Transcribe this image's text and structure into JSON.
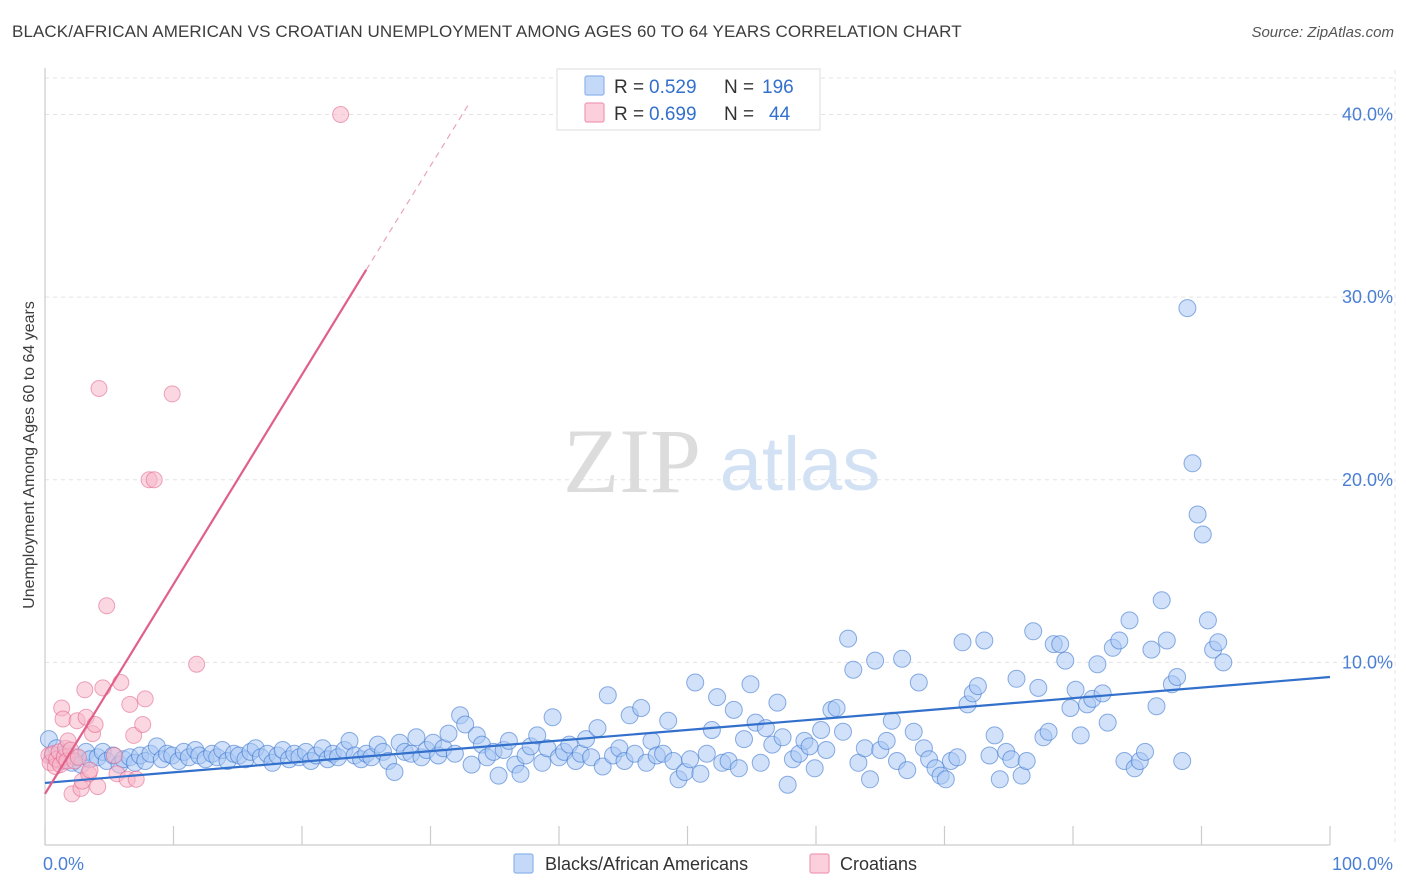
{
  "header": {
    "title": "BLACK/AFRICAN AMERICAN VS CROATIAN UNEMPLOYMENT AMONG AGES 60 TO 64 YEARS CORRELATION CHART",
    "source": "Source: ZipAtlas.com"
  },
  "watermark": {
    "zip": "ZIP",
    "atlas": "atlas"
  },
  "stats": [
    {
      "r_label": "R =",
      "r_value": "0.529",
      "n_label": "N =",
      "n_value": "196",
      "color": "#a9c8f4"
    },
    {
      "r_label": "R =",
      "r_value": "0.699",
      "n_label": "N =",
      "n_value": "44",
      "color": "#f7b6c9"
    }
  ],
  "legend": [
    {
      "label": "Blacks/African Americans",
      "color": "#a9c8f4"
    },
    {
      "label": "Croatians",
      "color": "#f7b6c9"
    }
  ],
  "chart_data": {
    "type": "scatter",
    "ylabel": "Unemployment Among Ages 60 to 64 years",
    "xlim": [
      0,
      100
    ],
    "ylim": [
      0,
      42
    ],
    "x_tick_labels": [
      {
        "value": 0,
        "label": "0.0%"
      },
      {
        "value": 100,
        "label": "100.0%"
      }
    ],
    "y_tick_labels": [
      {
        "value": 10,
        "label": "10.0%"
      },
      {
        "value": 20,
        "label": "20.0%"
      },
      {
        "value": 30,
        "label": "30.0%"
      },
      {
        "value": 40,
        "label": "40.0%"
      }
    ],
    "grid": true,
    "series": [
      {
        "name": "Blacks/African Americans",
        "color": "#3370cc",
        "fill": "#a9c8f4",
        "trend": {
          "x": [
            0,
            100
          ],
          "y": [
            3.4,
            9.2
          ]
        },
        "points": [
          [
            0.3,
            5.8
          ],
          [
            0.6,
            4.9
          ],
          [
            0.9,
            5.3
          ],
          [
            1.3,
            4.6
          ],
          [
            1.6,
            5.0
          ],
          [
            2.1,
            4.5
          ],
          [
            2.4,
            4.8
          ],
          [
            2.8,
            4.4
          ],
          [
            3.2,
            5.1
          ],
          [
            3.5,
            4.7
          ],
          [
            4.1,
            4.8
          ],
          [
            4.5,
            5.1
          ],
          [
            4.8,
            4.6
          ],
          [
            5.3,
            4.9
          ],
          [
            5.8,
            4.4
          ],
          [
            6.1,
            4.7
          ],
          [
            6.6,
            4.8
          ],
          [
            7.0,
            4.5
          ],
          [
            7.4,
            4.9
          ],
          [
            7.8,
            4.6
          ],
          [
            8.2,
            5.0
          ],
          [
            8.7,
            5.4
          ],
          [
            9.1,
            4.7
          ],
          [
            9.5,
            5.0
          ],
          [
            9.9,
            4.9
          ],
          [
            10.4,
            4.6
          ],
          [
            10.8,
            5.1
          ],
          [
            11.2,
            4.8
          ],
          [
            11.7,
            5.2
          ],
          [
            12.0,
            4.9
          ],
          [
            12.5,
            4.7
          ],
          [
            13.0,
            5.0
          ],
          [
            13.4,
            4.8
          ],
          [
            13.8,
            5.2
          ],
          [
            14.2,
            4.6
          ],
          [
            14.7,
            5.0
          ],
          [
            15.1,
            4.9
          ],
          [
            15.6,
            4.7
          ],
          [
            16.0,
            5.1
          ],
          [
            16.4,
            5.3
          ],
          [
            16.8,
            4.8
          ],
          [
            17.3,
            5.0
          ],
          [
            17.7,
            4.5
          ],
          [
            18.1,
            4.9
          ],
          [
            18.5,
            5.2
          ],
          [
            19.0,
            4.7
          ],
          [
            19.4,
            5.0
          ],
          [
            19.8,
            4.8
          ],
          [
            20.3,
            5.1
          ],
          [
            20.7,
            4.6
          ],
          [
            21.1,
            4.9
          ],
          [
            21.6,
            5.3
          ],
          [
            22.0,
            4.7
          ],
          [
            22.4,
            5.0
          ],
          [
            22.8,
            4.8
          ],
          [
            23.3,
            5.2
          ],
          [
            23.7,
            5.7
          ],
          [
            24.1,
            4.9
          ],
          [
            24.6,
            4.7
          ],
          [
            25.0,
            5.0
          ],
          [
            25.4,
            4.8
          ],
          [
            25.9,
            5.5
          ],
          [
            26.3,
            5.1
          ],
          [
            26.7,
            4.6
          ],
          [
            27.2,
            4.0
          ],
          [
            27.6,
            5.6
          ],
          [
            28.0,
            5.1
          ],
          [
            28.5,
            5.0
          ],
          [
            28.9,
            5.9
          ],
          [
            29.3,
            4.8
          ],
          [
            29.7,
            5.2
          ],
          [
            30.2,
            5.6
          ],
          [
            30.6,
            4.9
          ],
          [
            31.0,
            5.3
          ],
          [
            31.4,
            6.1
          ],
          [
            31.9,
            5.0
          ],
          [
            32.3,
            7.1
          ],
          [
            32.7,
            6.6
          ],
          [
            33.2,
            4.4
          ],
          [
            33.6,
            6.0
          ],
          [
            34.0,
            5.5
          ],
          [
            34.4,
            4.8
          ],
          [
            34.9,
            5.1
          ],
          [
            35.3,
            3.8
          ],
          [
            35.7,
            5.2
          ],
          [
            36.1,
            5.7
          ],
          [
            36.6,
            4.4
          ],
          [
            37.0,
            3.9
          ],
          [
            37.4,
            4.9
          ],
          [
            37.8,
            5.4
          ],
          [
            38.3,
            6.0
          ],
          [
            38.7,
            4.5
          ],
          [
            39.1,
            5.3
          ],
          [
            39.5,
            7.0
          ],
          [
            40.0,
            4.8
          ],
          [
            40.4,
            5.1
          ],
          [
            40.8,
            5.5
          ],
          [
            41.3,
            4.6
          ],
          [
            41.7,
            5.0
          ],
          [
            42.1,
            5.8
          ],
          [
            42.5,
            4.8
          ],
          [
            43.0,
            6.4
          ],
          [
            43.4,
            4.3
          ],
          [
            43.8,
            8.2
          ],
          [
            44.2,
            4.9
          ],
          [
            44.7,
            5.3
          ],
          [
            45.1,
            4.6
          ],
          [
            45.5,
            7.1
          ],
          [
            45.9,
            5.0
          ],
          [
            46.4,
            7.5
          ],
          [
            46.8,
            4.5
          ],
          [
            47.2,
            5.7
          ],
          [
            47.6,
            4.9
          ],
          [
            48.1,
            5.0
          ],
          [
            48.5,
            6.8
          ],
          [
            48.9,
            4.6
          ],
          [
            49.3,
            3.6
          ],
          [
            49.8,
            4.0
          ],
          [
            50.2,
            4.7
          ],
          [
            50.6,
            8.9
          ],
          [
            51.0,
            3.9
          ],
          [
            51.5,
            5.0
          ],
          [
            51.9,
            6.3
          ],
          [
            52.3,
            8.1
          ],
          [
            52.7,
            4.5
          ],
          [
            53.2,
            4.6
          ],
          [
            53.6,
            7.4
          ],
          [
            54.0,
            4.2
          ],
          [
            54.4,
            5.8
          ],
          [
            54.9,
            8.8
          ],
          [
            55.3,
            6.7
          ],
          [
            55.7,
            4.5
          ],
          [
            56.1,
            6.4
          ],
          [
            56.6,
            5.5
          ],
          [
            57.0,
            7.8
          ],
          [
            57.4,
            5.9
          ],
          [
            57.8,
            3.3
          ],
          [
            58.2,
            4.7
          ],
          [
            58.7,
            5.0
          ],
          [
            59.1,
            5.7
          ],
          [
            59.5,
            5.4
          ],
          [
            59.9,
            4.2
          ],
          [
            60.4,
            6.3
          ],
          [
            60.8,
            5.2
          ],
          [
            61.2,
            7.4
          ],
          [
            61.6,
            7.5
          ],
          [
            62.1,
            6.2
          ],
          [
            62.5,
            11.3
          ],
          [
            62.9,
            9.6
          ],
          [
            63.3,
            4.5
          ],
          [
            63.8,
            5.3
          ],
          [
            64.2,
            3.6
          ],
          [
            64.6,
            10.1
          ],
          [
            65.0,
            5.2
          ],
          [
            65.5,
            5.7
          ],
          [
            65.9,
            6.8
          ],
          [
            66.3,
            4.6
          ],
          [
            66.7,
            10.2
          ],
          [
            67.1,
            4.1
          ],
          [
            67.6,
            6.2
          ],
          [
            68.0,
            8.9
          ],
          [
            68.4,
            5.3
          ],
          [
            68.8,
            4.7
          ],
          [
            69.3,
            4.2
          ],
          [
            69.7,
            3.8
          ],
          [
            70.1,
            3.6
          ],
          [
            70.5,
            4.6
          ],
          [
            71.0,
            4.8
          ],
          [
            71.4,
            11.1
          ],
          [
            71.8,
            7.7
          ],
          [
            72.2,
            8.3
          ],
          [
            72.6,
            8.7
          ],
          [
            73.1,
            11.2
          ],
          [
            73.5,
            4.9
          ],
          [
            73.9,
            6.0
          ],
          [
            74.3,
            3.6
          ],
          [
            74.8,
            5.1
          ],
          [
            75.2,
            4.7
          ],
          [
            75.6,
            9.1
          ],
          [
            76.0,
            3.8
          ],
          [
            76.4,
            4.6
          ],
          [
            76.9,
            11.7
          ],
          [
            77.3,
            8.6
          ],
          [
            77.7,
            5.9
          ],
          [
            78.1,
            6.2
          ],
          [
            78.5,
            11.0
          ],
          [
            79.0,
            11.0
          ],
          [
            79.4,
            10.1
          ],
          [
            79.8,
            7.5
          ],
          [
            80.2,
            8.5
          ],
          [
            80.6,
            6.0
          ],
          [
            81.1,
            7.7
          ],
          [
            81.5,
            8.0
          ],
          [
            81.9,
            9.9
          ],
          [
            82.3,
            8.3
          ],
          [
            82.7,
            6.7
          ],
          [
            83.1,
            10.8
          ],
          [
            83.6,
            11.2
          ],
          [
            84.0,
            4.6
          ],
          [
            84.4,
            12.3
          ],
          [
            84.8,
            4.2
          ],
          [
            85.2,
            4.6
          ],
          [
            85.6,
            5.1
          ],
          [
            86.1,
            10.7
          ],
          [
            86.5,
            7.6
          ],
          [
            86.9,
            13.4
          ],
          [
            87.3,
            11.2
          ],
          [
            87.7,
            8.8
          ],
          [
            88.1,
            9.2
          ],
          [
            88.5,
            4.6
          ],
          [
            88.9,
            29.4
          ],
          [
            89.3,
            20.9
          ],
          [
            89.7,
            18.1
          ],
          [
            90.1,
            17.0
          ],
          [
            90.5,
            12.3
          ],
          [
            90.9,
            10.7
          ],
          [
            91.3,
            11.1
          ],
          [
            91.7,
            10.0
          ]
        ]
      },
      {
        "name": "Croatians",
        "color": "#e0608a",
        "fill": "#f7b6c9",
        "trend": {
          "x": [
            0,
            25
          ],
          "y": [
            2.8,
            31.5
          ]
        },
        "trend_dashed": {
          "x": [
            25,
            33
          ],
          "y": [
            31.5,
            40.6
          ]
        },
        "points": [
          [
            0.3,
            4.9
          ],
          [
            0.4,
            4.5
          ],
          [
            0.6,
            5.0
          ],
          [
            0.8,
            4.3
          ],
          [
            0.9,
            4.7
          ],
          [
            1.1,
            5.1
          ],
          [
            1.2,
            4.4
          ],
          [
            1.3,
            7.5
          ],
          [
            1.4,
            6.9
          ],
          [
            1.5,
            4.8
          ],
          [
            1.6,
            5.3
          ],
          [
            1.7,
            4.6
          ],
          [
            1.8,
            5.7
          ],
          [
            2.0,
            5.2
          ],
          [
            2.1,
            2.8
          ],
          [
            2.3,
            4.6
          ],
          [
            2.5,
            6.8
          ],
          [
            2.6,
            4.8
          ],
          [
            2.8,
            3.1
          ],
          [
            2.9,
            3.5
          ],
          [
            3.1,
            8.5
          ],
          [
            3.2,
            7.0
          ],
          [
            3.4,
            3.9
          ],
          [
            3.5,
            4.1
          ],
          [
            3.7,
            6.1
          ],
          [
            3.9,
            6.6
          ],
          [
            4.1,
            3.2
          ],
          [
            4.2,
            25.0
          ],
          [
            4.5,
            8.6
          ],
          [
            4.8,
            13.1
          ],
          [
            5.4,
            4.9
          ],
          [
            5.6,
            3.9
          ],
          [
            5.9,
            8.9
          ],
          [
            6.4,
            3.6
          ],
          [
            6.6,
            7.7
          ],
          [
            6.9,
            6.0
          ],
          [
            7.1,
            3.6
          ],
          [
            7.6,
            6.6
          ],
          [
            7.8,
            8.0
          ],
          [
            8.1,
            20.0
          ],
          [
            8.5,
            20.0
          ],
          [
            9.9,
            24.7
          ],
          [
            11.8,
            9.9
          ],
          [
            23.0,
            40.0
          ]
        ]
      }
    ]
  }
}
